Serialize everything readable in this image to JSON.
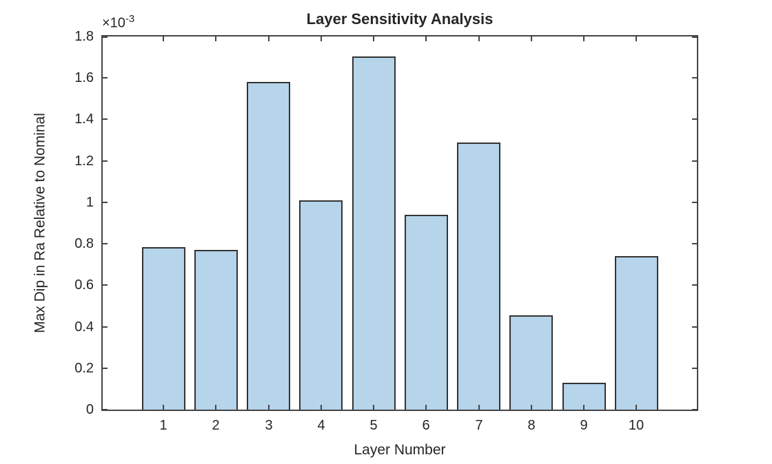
{
  "figure": {
    "background": "#FFFFFF"
  },
  "chart_data": {
    "type": "bar",
    "title": "Layer Sensitivity Analysis",
    "xlabel": "Layer Number",
    "ylabel": "Max Dip in Ra Relative to Nominal",
    "y_axis_multiplier": {
      "base": "×10",
      "exponent": "-3"
    },
    "categories": [
      "1",
      "2",
      "3",
      "4",
      "5",
      "6",
      "7",
      "8",
      "9",
      "10"
    ],
    "values": [
      0.785,
      0.77,
      1.58,
      1.01,
      1.705,
      0.94,
      1.29,
      0.455,
      0.13,
      0.74
    ],
    "values_scale": "1e-3",
    "ylim": [
      0,
      1.8
    ],
    "yticks": [
      0,
      0.2,
      0.4,
      0.6,
      0.8,
      1,
      1.2,
      1.4,
      1.6,
      1.8
    ],
    "ytick_labels": [
      "0",
      "0.2",
      "0.4",
      "0.6",
      "0.8",
      "1",
      "1.2",
      "1.4",
      "1.6",
      "1.8"
    ],
    "grid": false,
    "legend_position": "none",
    "colors": {
      "bar_fill": "#B6D4EA",
      "bar_edge": "#333333",
      "axis": "#444444",
      "text": "#262626"
    }
  }
}
